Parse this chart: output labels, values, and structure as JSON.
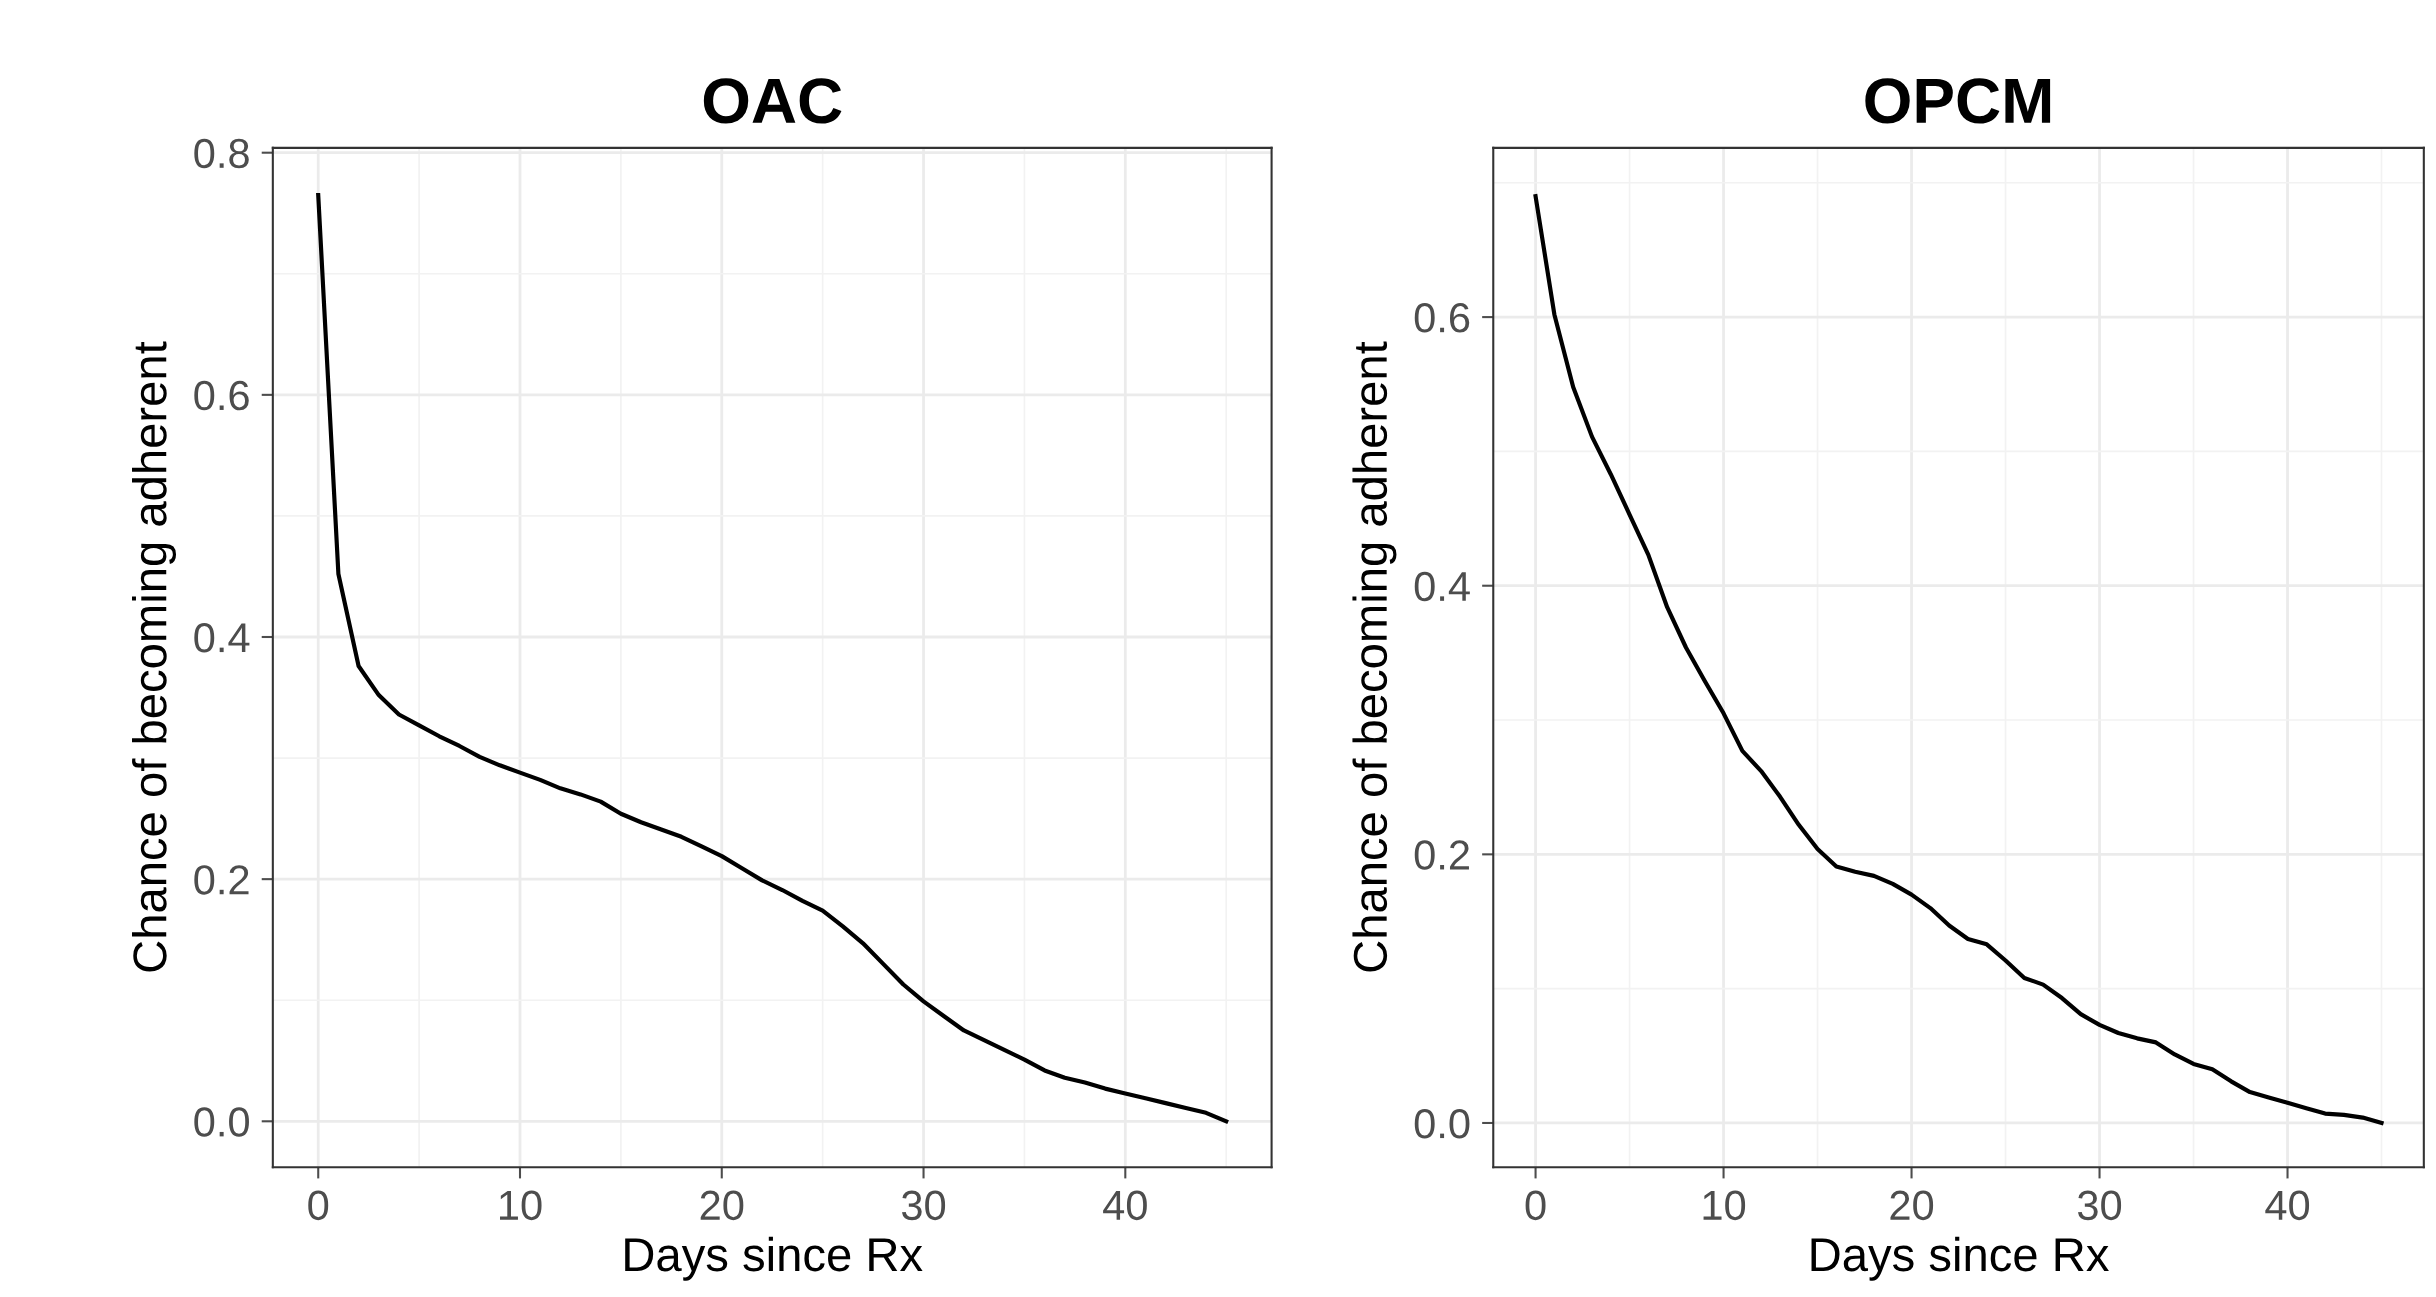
{
  "chart_data": [
    {
      "type": "line",
      "title": "OAC",
      "xlabel": "Days since Rx",
      "ylabel": "Chance of becoming adherent",
      "x": [
        0,
        1,
        2,
        3,
        4,
        5,
        6,
        7,
        8,
        9,
        10,
        11,
        12,
        13,
        14,
        15,
        16,
        17,
        18,
        19,
        20,
        21,
        22,
        23,
        24,
        25,
        26,
        27,
        28,
        29,
        30,
        31,
        32,
        33,
        34,
        35,
        36,
        37,
        38,
        39,
        40,
        41,
        42,
        43,
        44,
        45
      ],
      "series": [
        {
          "color": "#000000",
          "values": [
            0.765,
            0.452,
            0.376,
            0.352,
            0.336,
            0.327,
            0.318,
            0.31,
            0.301,
            0.294,
            0.288,
            0.282,
            0.275,
            0.27,
            0.264,
            0.254,
            0.247,
            0.241,
            0.235,
            0.227,
            0.219,
            0.209,
            0.199,
            0.191,
            0.182,
            0.174,
            0.161,
            0.147,
            0.13,
            0.113,
            0.099,
            0.087,
            0.075,
            0.067,
            0.059,
            0.051,
            0.042,
            0.036,
            0.032,
            0.027,
            0.023,
            0.019,
            0.015,
            0.011,
            0.007,
            0.0
          ]
        }
      ],
      "xlim": [
        -2.25,
        47.25
      ],
      "xticks": [
        0,
        10,
        20,
        30,
        40
      ],
      "ylim": [
        -0.038,
        0.804
      ],
      "yticks": [
        {
          "value": 0,
          "label": "0.0"
        },
        0.2,
        0.4,
        0.6,
        0.8
      ],
      "grid": true,
      "legend": false,
      "line_style": "solid"
    },
    {
      "type": "line",
      "title": "OPCM",
      "xlabel": "Days since Rx",
      "ylabel": "Chance of becoming adherent",
      "x": [
        0,
        1,
        2,
        3,
        4,
        5,
        6,
        7,
        8,
        9,
        10,
        11,
        12,
        13,
        14,
        15,
        16,
        17,
        18,
        19,
        20,
        21,
        22,
        23,
        24,
        25,
        26,
        27,
        28,
        29,
        30,
        31,
        32,
        33,
        34,
        35,
        36,
        37,
        38,
        39,
        40,
        41,
        42,
        43,
        44,
        45
      ],
      "series": [
        {
          "color": "#000000",
          "values": [
            0.69,
            0.602,
            0.548,
            0.511,
            0.483,
            0.453,
            0.423,
            0.384,
            0.354,
            0.329,
            0.305,
            0.277,
            0.262,
            0.243,
            0.222,
            0.204,
            0.191,
            0.187,
            0.184,
            0.178,
            0.17,
            0.16,
            0.147,
            0.137,
            0.133,
            0.121,
            0.108,
            0.103,
            0.093,
            0.081,
            0.073,
            0.067,
            0.063,
            0.06,
            0.051,
            0.044,
            0.04,
            0.031,
            0.023,
            0.019,
            0.015,
            0.011,
            0.007,
            0.006,
            0.004,
            0.0
          ]
        }
      ],
      "xlim": [
        -2.25,
        47.25
      ],
      "xticks": [
        0,
        10,
        20,
        30,
        40
      ],
      "ylim": [
        -0.033,
        0.726
      ],
      "yticks": [
        {
          "value": 0,
          "label": "0.0"
        },
        0.2,
        0.4,
        0.6
      ],
      "grid": true,
      "legend": false,
      "line_style": "solid"
    }
  ]
}
